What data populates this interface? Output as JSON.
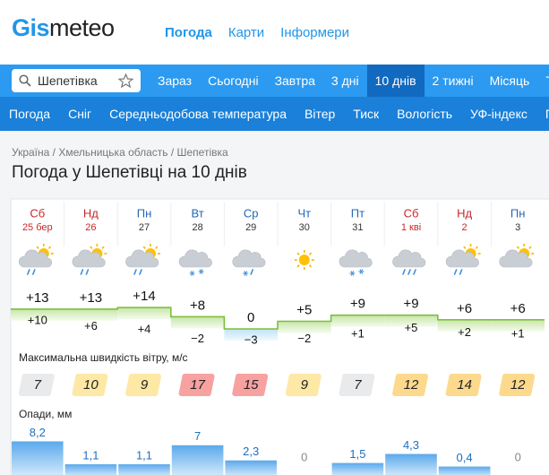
{
  "header": {
    "logo": [
      "Gis",
      "meteo"
    ],
    "nav": [
      "Погода",
      "Карти",
      "Інформери"
    ],
    "active_nav": 0
  },
  "search": {
    "value": "Шепетівка"
  },
  "tabs": {
    "items": [
      "Зараз",
      "Сьогодні",
      "Завтра",
      "3 дні",
      "10 днів",
      "2 тижні",
      "Місяць",
      "Ти"
    ],
    "active": 4
  },
  "subnav": [
    "Погода",
    "Сніг",
    "Середньодобова температура",
    "Вітер",
    "Тиск",
    "Вологість",
    "УФ-індекс",
    "Г/"
  ],
  "breadcrumbs": "Україна / Хмельницька область / Шепетівка",
  "title": "Погода у Шепетівці на 10 днів",
  "wind_label": "Максимальна швидкість вітру, м/с",
  "precip_label": "Опади, мм",
  "days": [
    {
      "weekday": "Сб",
      "date": "25 бер",
      "weekend": true,
      "max": {
        "value": 13,
        "label": "+13"
      },
      "min": {
        "value": 10,
        "label": "+10"
      },
      "wind": 7,
      "precip": {
        "value": 8.2,
        "label": "8,2"
      }
    },
    {
      "weekday": "Нд",
      "date": "26",
      "weekend": true,
      "max": {
        "value": 13,
        "label": "+13"
      },
      "min": {
        "value": 6,
        "label": "+6"
      },
      "wind": 10,
      "precip": {
        "value": 1.1,
        "label": "1,1"
      }
    },
    {
      "weekday": "Пн",
      "date": "27",
      "weekend": false,
      "max": {
        "value": 14,
        "label": "+14"
      },
      "min": {
        "value": 4,
        "label": "+4"
      },
      "wind": 9,
      "precip": {
        "value": 1.1,
        "label": "1,1"
      }
    },
    {
      "weekday": "Вт",
      "date": "28",
      "weekend": false,
      "max": {
        "value": 8,
        "label": "+8"
      },
      "min": {
        "value": -2,
        "label": "−2"
      },
      "wind": 17,
      "precip": {
        "value": 7,
        "label": "7"
      }
    },
    {
      "weekday": "Ср",
      "date": "29",
      "weekend": false,
      "max": {
        "value": 0,
        "label": "0"
      },
      "min": {
        "value": -3,
        "label": "−3"
      },
      "wind": 15,
      "precip": {
        "value": 2.3,
        "label": "2,3"
      }
    },
    {
      "weekday": "Чт",
      "date": "30",
      "weekend": false,
      "max": {
        "value": 5,
        "label": "+5"
      },
      "min": {
        "value": -2,
        "label": "−2"
      },
      "wind": 9,
      "precip": {
        "value": 0,
        "label": "0"
      }
    },
    {
      "weekday": "Пт",
      "date": "31",
      "weekend": false,
      "max": {
        "value": 9,
        "label": "+9"
      },
      "min": {
        "value": 1,
        "label": "+1"
      },
      "wind": 7,
      "precip": {
        "value": 1.5,
        "label": "1,5"
      }
    },
    {
      "weekday": "Сб",
      "date": "1 кві",
      "weekend": true,
      "max": {
        "value": 9,
        "label": "+9"
      },
      "min": {
        "value": 5,
        "label": "+5"
      },
      "wind": 12,
      "precip": {
        "value": 4.3,
        "label": "4,3"
      }
    },
    {
      "weekday": "Нд",
      "date": "2",
      "weekend": true,
      "max": {
        "value": 6,
        "label": "+6"
      },
      "min": {
        "value": 2,
        "label": "+2"
      },
      "wind": 14,
      "precip": {
        "value": 0.4,
        "label": "0,4"
      }
    },
    {
      "weekday": "Пн",
      "date": "3",
      "weekend": false,
      "max": {
        "value": 6,
        "label": "+6"
      },
      "min": {
        "value": 1,
        "label": "+1"
      },
      "wind": 12,
      "precip": {
        "value": 0,
        "label": "0"
      }
    }
  ]
}
